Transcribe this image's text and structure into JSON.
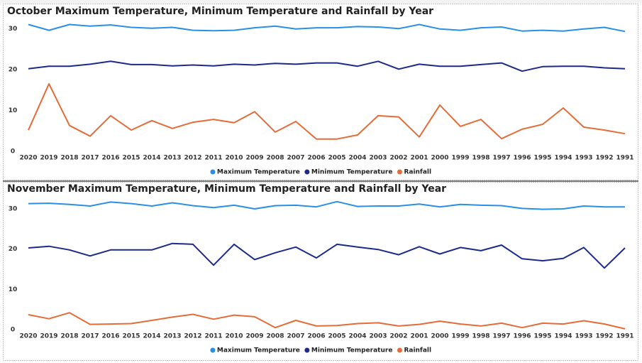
{
  "chart_data": [
    {
      "type": "line",
      "title": "October Maximum Temperature, Minimum Temperature and Rainfall by Year",
      "categories": [
        "2020",
        "2019",
        "2018",
        "2017",
        "2016",
        "2015",
        "2014",
        "2013",
        "2012",
        "2011",
        "2010",
        "2009",
        "2008",
        "2007",
        "2006",
        "2005",
        "2004",
        "2003",
        "2002",
        "2001",
        "2000",
        "1999",
        "1998",
        "1997",
        "1996",
        "1995",
        "1994",
        "1993",
        "1992",
        "1991"
      ],
      "series": [
        {
          "name": "Maximum Temperature",
          "color": "#2a8fe6",
          "values": [
            31,
            29.6,
            31,
            30.6,
            30.9,
            30.3,
            30.1,
            30.3,
            29.6,
            29.5,
            29.6,
            30.2,
            30.6,
            29.9,
            30.2,
            30.2,
            30.5,
            30.4,
            30,
            31,
            29.9,
            29.6,
            30.2,
            30.4,
            29.4,
            29.6,
            29.4,
            29.9,
            30.3,
            29.3
          ]
        },
        {
          "name": "Minimum Temperature",
          "color": "#1c2a8c",
          "values": [
            20.2,
            20.8,
            20.8,
            21.3,
            22,
            21.2,
            21.2,
            20.9,
            21.1,
            20.9,
            21.3,
            21.1,
            21.5,
            21.3,
            21.6,
            21.6,
            20.8,
            22,
            20.1,
            21.3,
            20.8,
            20.8,
            21.2,
            21.6,
            19.6,
            20.7,
            20.8,
            20.8,
            20.4,
            20.2
          ]
        },
        {
          "name": "Rainfall",
          "color": "#e66c37",
          "values": [
            5.2,
            16.5,
            6.3,
            3.7,
            8.7,
            5.2,
            7.5,
            5.6,
            7.1,
            7.8,
            7,
            9.7,
            4.7,
            7.3,
            3,
            3,
            4,
            8.7,
            8.4,
            3.5,
            11.3,
            6.1,
            7.8,
            3.1,
            5.4,
            6.6,
            10.6,
            5.9,
            5.2,
            4.3
          ]
        }
      ],
      "ylim": [
        0,
        33
      ],
      "yticks": [
        0,
        10,
        20,
        30
      ],
      "grid": false,
      "legend": "bottom"
    },
    {
      "type": "line",
      "title": "November Maximum Temperature, Minimum Temperature and Rainfall by Year",
      "categories": [
        "2020",
        "2019",
        "2018",
        "2017",
        "2016",
        "2015",
        "2014",
        "2013",
        "2012",
        "2011",
        "2010",
        "2009",
        "2008",
        "2007",
        "2006",
        "2005",
        "2004",
        "2003",
        "2002",
        "2001",
        "2000",
        "1999",
        "1998",
        "1997",
        "1996",
        "1995",
        "1994",
        "1993",
        "1992",
        "1991"
      ],
      "series": [
        {
          "name": "Maximum Temperature",
          "color": "#2a8fe6",
          "values": [
            31.3,
            31.4,
            31.1,
            30.7,
            31.7,
            31.3,
            30.7,
            31.5,
            30.8,
            30.3,
            30.9,
            30,
            30.8,
            30.9,
            30.5,
            31.8,
            30.6,
            30.7,
            30.7,
            31.2,
            30.5,
            31.1,
            30.9,
            30.8,
            30.1,
            29.9,
            30,
            30.7,
            30.5,
            30.5
          ]
        },
        {
          "name": "Minimum Temperature",
          "color": "#1c2a8c",
          "values": [
            20.3,
            20.7,
            19.8,
            18.3,
            19.8,
            19.8,
            19.8,
            21.4,
            21.2,
            16,
            21.2,
            17.4,
            19.1,
            20.5,
            17.8,
            21.2,
            20.5,
            19.9,
            18.6,
            20.6,
            18.8,
            20.4,
            19.6,
            21,
            17.6,
            17.1,
            17.7,
            20.4,
            15.3,
            20.3
          ]
        },
        {
          "name": "Rainfall",
          "color": "#e66c37",
          "values": [
            3.7,
            2.7,
            4.2,
            1.3,
            1.4,
            1.5,
            2.3,
            3.1,
            3.8,
            2.6,
            3.6,
            3.2,
            0.5,
            2.3,
            0.9,
            1,
            1.5,
            1.7,
            0.9,
            1.3,
            2.1,
            1.4,
            0.9,
            1.6,
            0.5,
            1.6,
            1.4,
            2.2,
            1.4,
            0.2
          ]
        }
      ],
      "ylim": [
        0,
        33
      ],
      "yticks": [
        0,
        10,
        20,
        30
      ],
      "grid": false,
      "legend": "bottom"
    }
  ]
}
